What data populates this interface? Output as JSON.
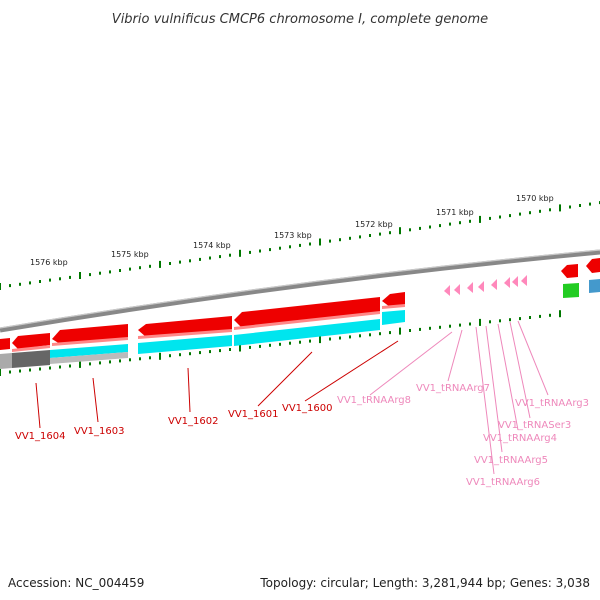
{
  "title": "Vibrio vulnificus CMCP6 chromosome I, complete genome",
  "footer": {
    "accession": "Accession: NC_004459",
    "stats": "Topology: circular; Length: 3,281,944 bp; Genes: 3,038"
  },
  "colors": {
    "cds": "#ee0000",
    "cds_highlight": "#ff6666",
    "cds_band": "#00e5ee",
    "trna": "#ff88bb",
    "backbone": "#888888",
    "tick": "#007700",
    "cds_label": "#cc0000",
    "trna_label": "#ee88bb",
    "other_band": "#666666",
    "green_feature": "#22cc22",
    "blue_feature": "#4499cc"
  },
  "kbp_labels": [
    "1576 kbp",
    "1575 kbp",
    "1574 kbp",
    "1573 kbp",
    "1572 kbp",
    "1571 kbp",
    "1570 kbp"
  ],
  "cds_labels": [
    "VV1_1604",
    "VV1_1603",
    "VV1_1602",
    "VV1_1601",
    "VV1_1600"
  ],
  "trna_labels": [
    "VV1_tRNAArg8",
    "VV1_tRNAArg7",
    "VV1_tRNAArg3",
    "VV1_tRNASer3",
    "VV1_tRNAArg4",
    "VV1_tRNAArg5",
    "VV1_tRNAArg6"
  ]
}
